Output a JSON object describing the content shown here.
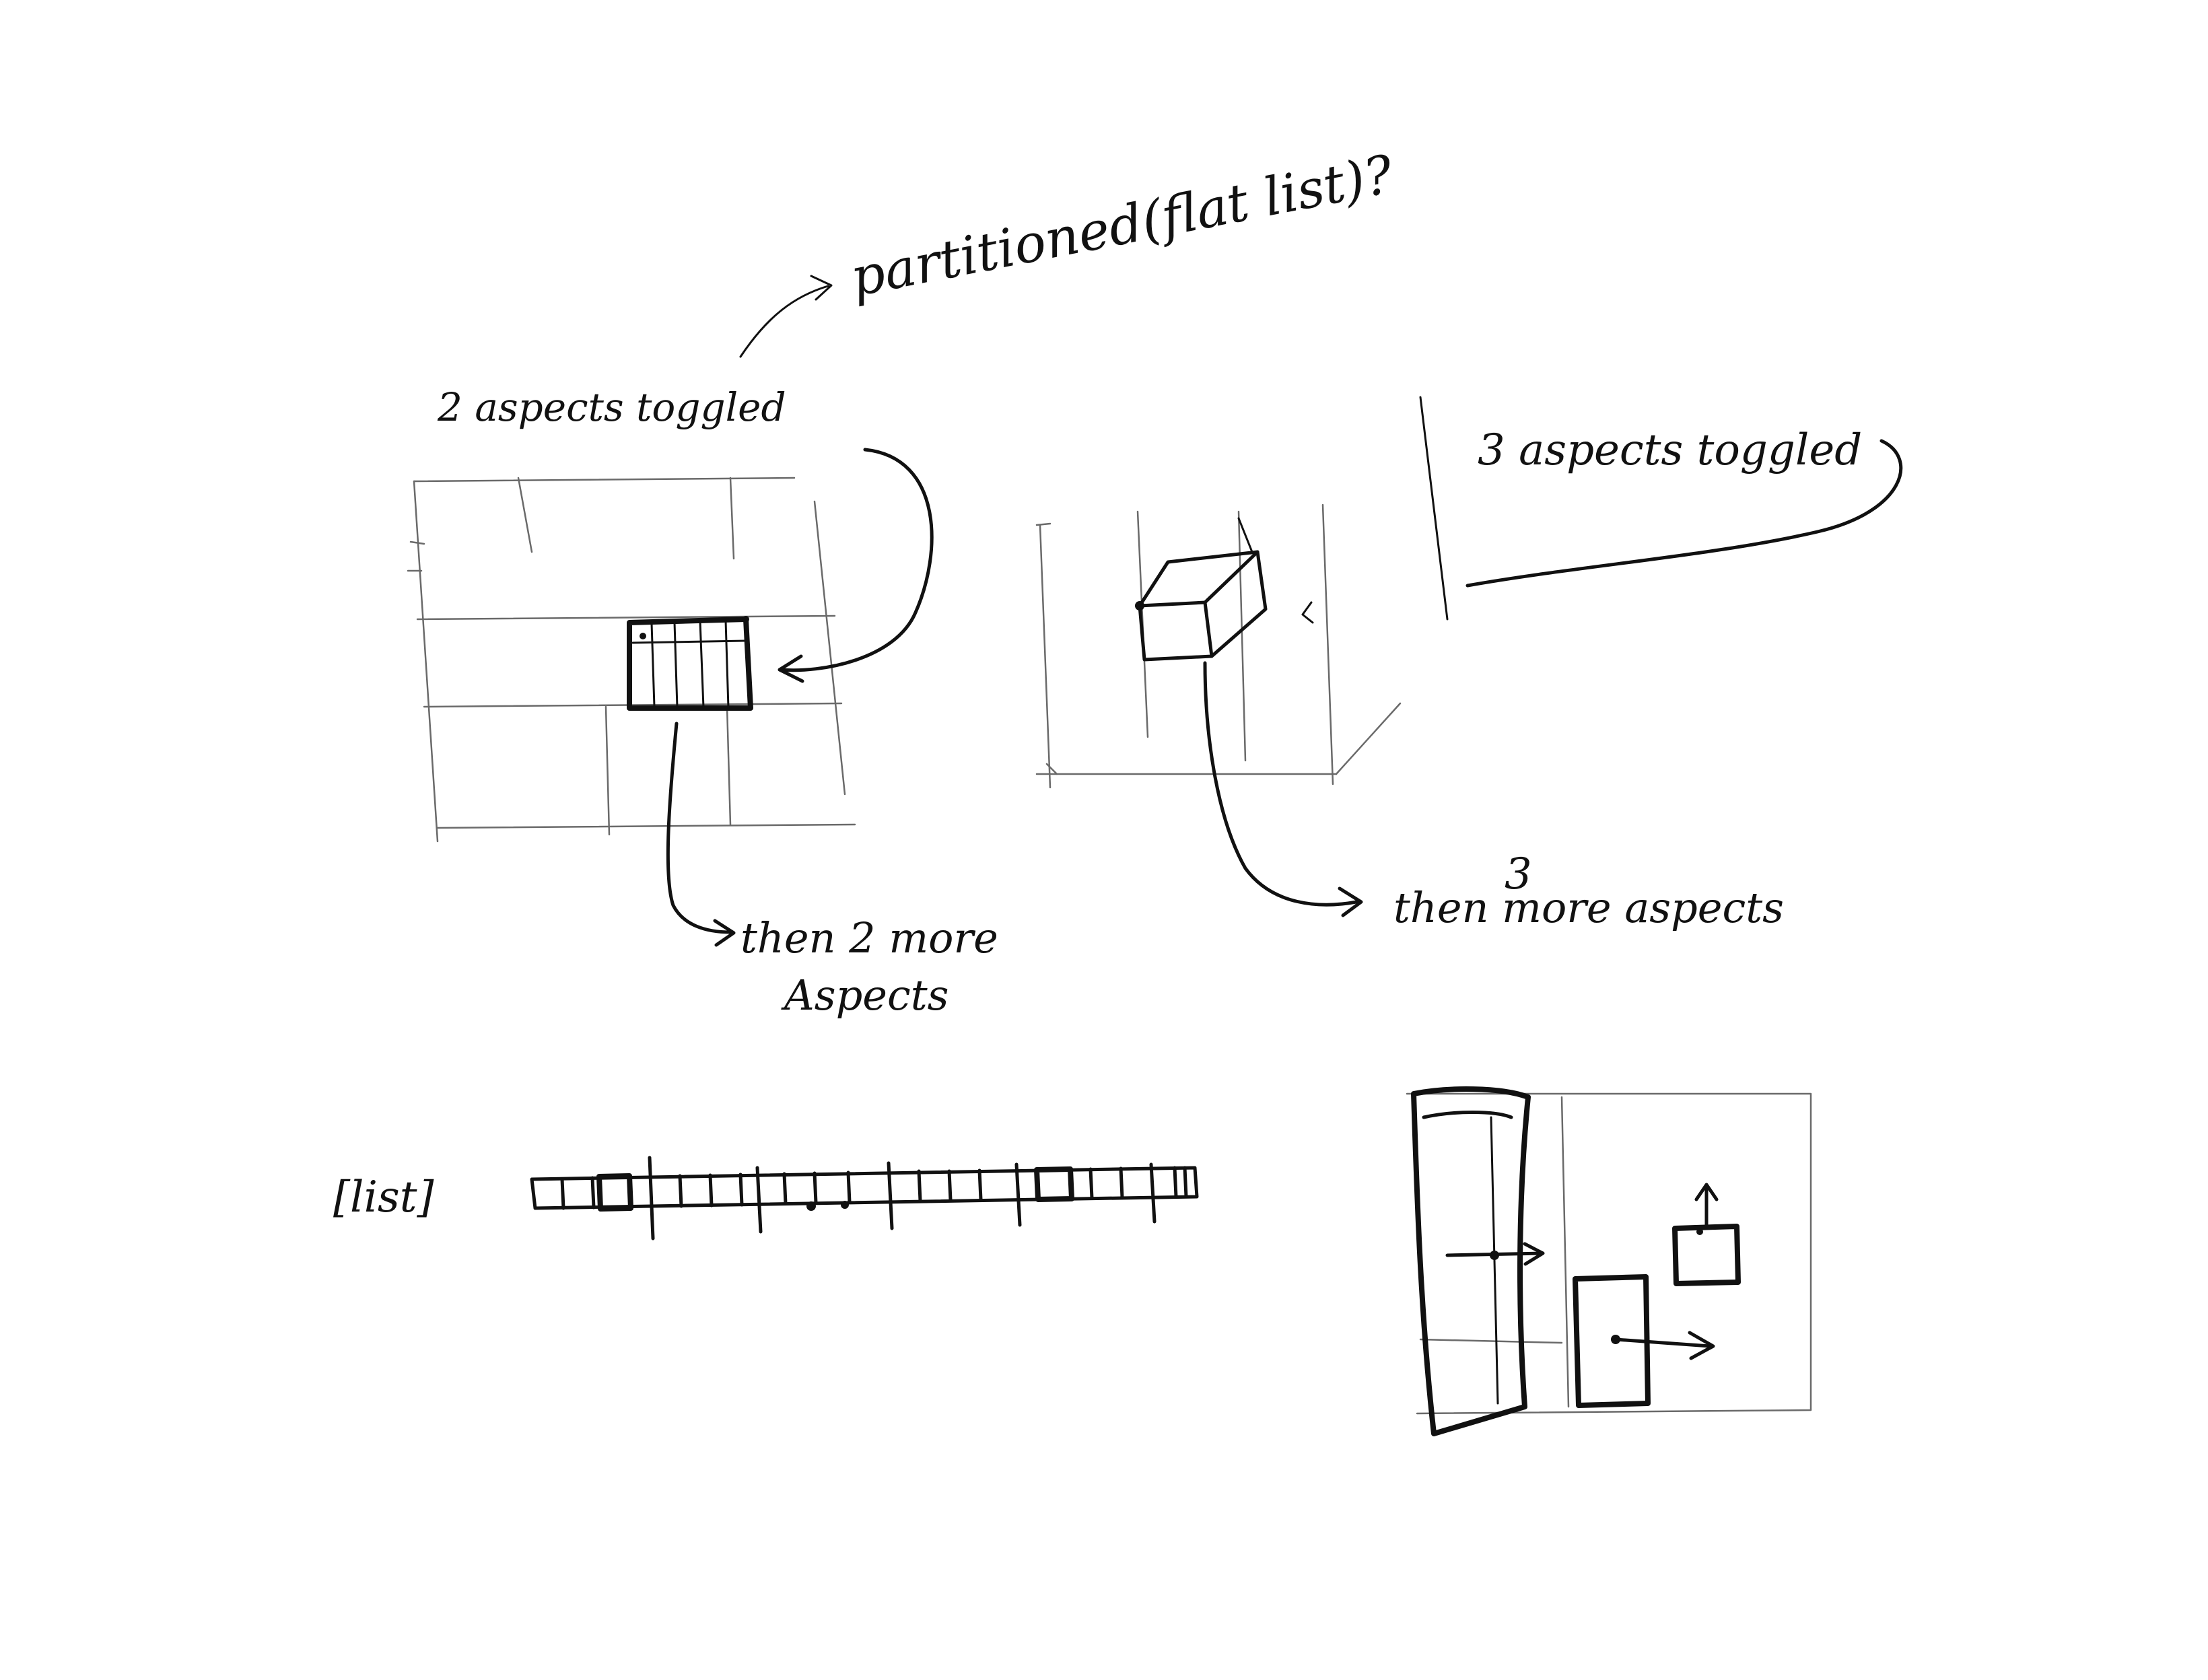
{
  "labels": {
    "partitioned_q": "partitioned(flat list)?",
    "two_aspects": "2 aspects toggled",
    "then_two_more": "then 2 more",
    "aspects": "Aspects",
    "three_aspects": "3 aspects toggled",
    "three_numeral": "3",
    "then_three_more": "then more aspects",
    "flat_list": "[list]"
  },
  "colors": {
    "ink": "#111111",
    "paper": "#ffffff",
    "faint_ink": "#6a6a6a"
  }
}
